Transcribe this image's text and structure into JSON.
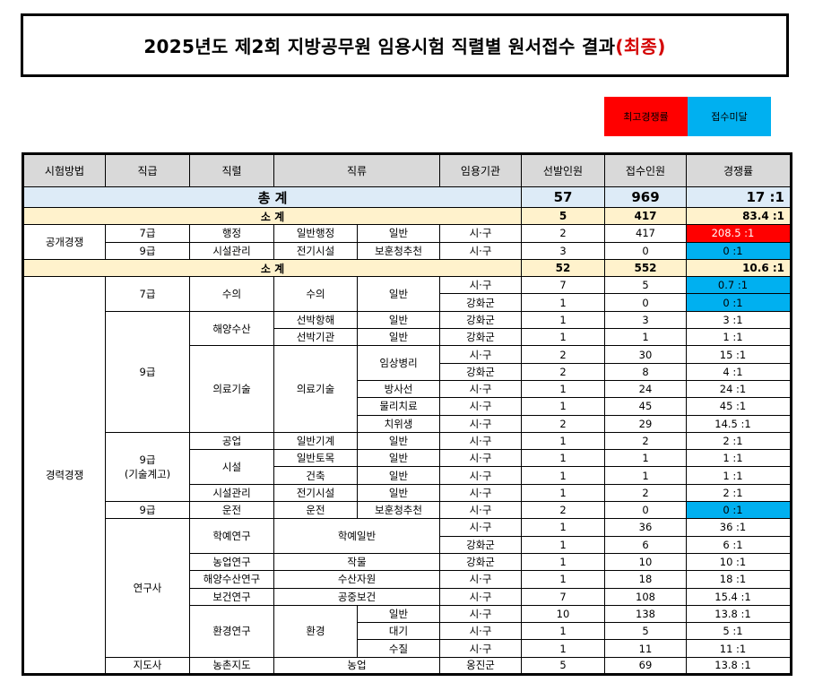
{
  "title": {
    "main": "2025년도 제2회 지방공무원 임용시험 직렬별 원서접수 결과",
    "accent": "(최종)"
  },
  "legend": {
    "highest": "최고경쟁률",
    "under": "접수미달"
  },
  "headers": [
    "시험방법",
    "직급",
    "직렬",
    "직류",
    "임용기관",
    "선발인원",
    "접수인원",
    "경쟁률"
  ],
  "total": {
    "label": "총 계",
    "selected": "57",
    "applied": "969",
    "ratio": "17 :1"
  },
  "open": {
    "subtotal": {
      "label": "소 계",
      "selected": "5",
      "applied": "417",
      "ratio": "83.4 :1"
    },
    "method": "공개경쟁",
    "rows": [
      {
        "grade": "7급",
        "series": "행정",
        "class1": "일반행정",
        "class2": "일반",
        "org": "시·구",
        "selected": "2",
        "applied": "417",
        "ratio": "208.5 :1",
        "status": "hot"
      },
      {
        "grade": "9급",
        "series": "시설관리",
        "class1": "전기시설",
        "class2": "보훈청추천",
        "org": "시·구",
        "selected": "3",
        "applied": "0",
        "ratio": "0 :1",
        "status": "low"
      }
    ]
  },
  "career": {
    "subtotal": {
      "label": "소 계",
      "selected": "52",
      "applied": "552",
      "ratio": "10.6 :1"
    },
    "method": "경력경쟁",
    "grades": {
      "g7": "7급",
      "g9": "9급",
      "g9tech": "9급",
      "g9tech_note": "(기술계고)",
      "g9b": "9급",
      "researcher": "연구사",
      "advisor": "지도사"
    },
    "series": {
      "vet": "수의",
      "marine": "해양수산",
      "medtech": "의료기술",
      "industry": "공업",
      "facility": "시설",
      "facmgmt": "시설관리",
      "drive": "운전",
      "edu": "학예연구",
      "agri": "농업연구",
      "marineres": "해양수산연구",
      "health": "보건연구",
      "env": "환경연구",
      "rural": "농촌지도"
    },
    "classes": {
      "vet": "수의",
      "vet2": "일반",
      "ship1": "선박항해",
      "ship2": "선박기관",
      "gen": "일반",
      "medtech": "의료기술",
      "clinic": "임상병리",
      "rad": "방사선",
      "pt": "물리치료",
      "dental": "치위생",
      "mech": "일반기계",
      "civil": "일반토목",
      "arch": "건축",
      "elec": "전기시설",
      "drive": "운전",
      "veteran": "보훈청추천",
      "curator": "학예일반",
      "crop": "작물",
      "marineres": "수산자원",
      "public": "공중보건",
      "env": "환경",
      "air": "대기",
      "water": "수질",
      "agri": "농업"
    },
    "rows": [
      {
        "org": "시·구",
        "selected": "7",
        "applied": "5",
        "ratio": "0.7 :1",
        "status": "low"
      },
      {
        "org": "강화군",
        "selected": "1",
        "applied": "0",
        "ratio": "0 :1",
        "status": "low"
      },
      {
        "org": "강화군",
        "selected": "1",
        "applied": "3",
        "ratio": "3 :1",
        "status": ""
      },
      {
        "org": "강화군",
        "selected": "1",
        "applied": "1",
        "ratio": "1 :1",
        "status": ""
      },
      {
        "org": "시·구",
        "selected": "2",
        "applied": "30",
        "ratio": "15 :1",
        "status": ""
      },
      {
        "org": "강화군",
        "selected": "2",
        "applied": "8",
        "ratio": "4 :1",
        "status": ""
      },
      {
        "org": "시·구",
        "selected": "1",
        "applied": "24",
        "ratio": "24 :1",
        "status": ""
      },
      {
        "org": "시·구",
        "selected": "1",
        "applied": "45",
        "ratio": "45 :1",
        "status": ""
      },
      {
        "org": "시·구",
        "selected": "2",
        "applied": "29",
        "ratio": "14.5 :1",
        "status": ""
      },
      {
        "org": "시·구",
        "selected": "1",
        "applied": "2",
        "ratio": "2 :1",
        "status": ""
      },
      {
        "org": "시·구",
        "selected": "1",
        "applied": "1",
        "ratio": "1 :1",
        "status": ""
      },
      {
        "org": "시·구",
        "selected": "1",
        "applied": "1",
        "ratio": "1 :1",
        "status": ""
      },
      {
        "org": "시·구",
        "selected": "1",
        "applied": "2",
        "ratio": "2 :1",
        "status": ""
      },
      {
        "org": "시·구",
        "selected": "2",
        "applied": "0",
        "ratio": "0 :1",
        "status": "low"
      },
      {
        "org": "시·구",
        "selected": "1",
        "applied": "36",
        "ratio": "36 :1",
        "status": ""
      },
      {
        "org": "강화군",
        "selected": "1",
        "applied": "6",
        "ratio": "6 :1",
        "status": ""
      },
      {
        "org": "강화군",
        "selected": "1",
        "applied": "10",
        "ratio": "10 :1",
        "status": ""
      },
      {
        "org": "시·구",
        "selected": "1",
        "applied": "18",
        "ratio": "18 :1",
        "status": ""
      },
      {
        "org": "시·구",
        "selected": "7",
        "applied": "108",
        "ratio": "15.4 :1",
        "status": ""
      },
      {
        "org": "시·구",
        "selected": "10",
        "applied": "138",
        "ratio": "13.8 :1",
        "status": ""
      },
      {
        "org": "시·구",
        "selected": "1",
        "applied": "5",
        "ratio": "5 :1",
        "status": ""
      },
      {
        "org": "시·구",
        "selected": "1",
        "applied": "11",
        "ratio": "11 :1",
        "status": ""
      },
      {
        "org": "옹진군",
        "selected": "5",
        "applied": "69",
        "ratio": "13.8 :1",
        "status": ""
      }
    ]
  }
}
